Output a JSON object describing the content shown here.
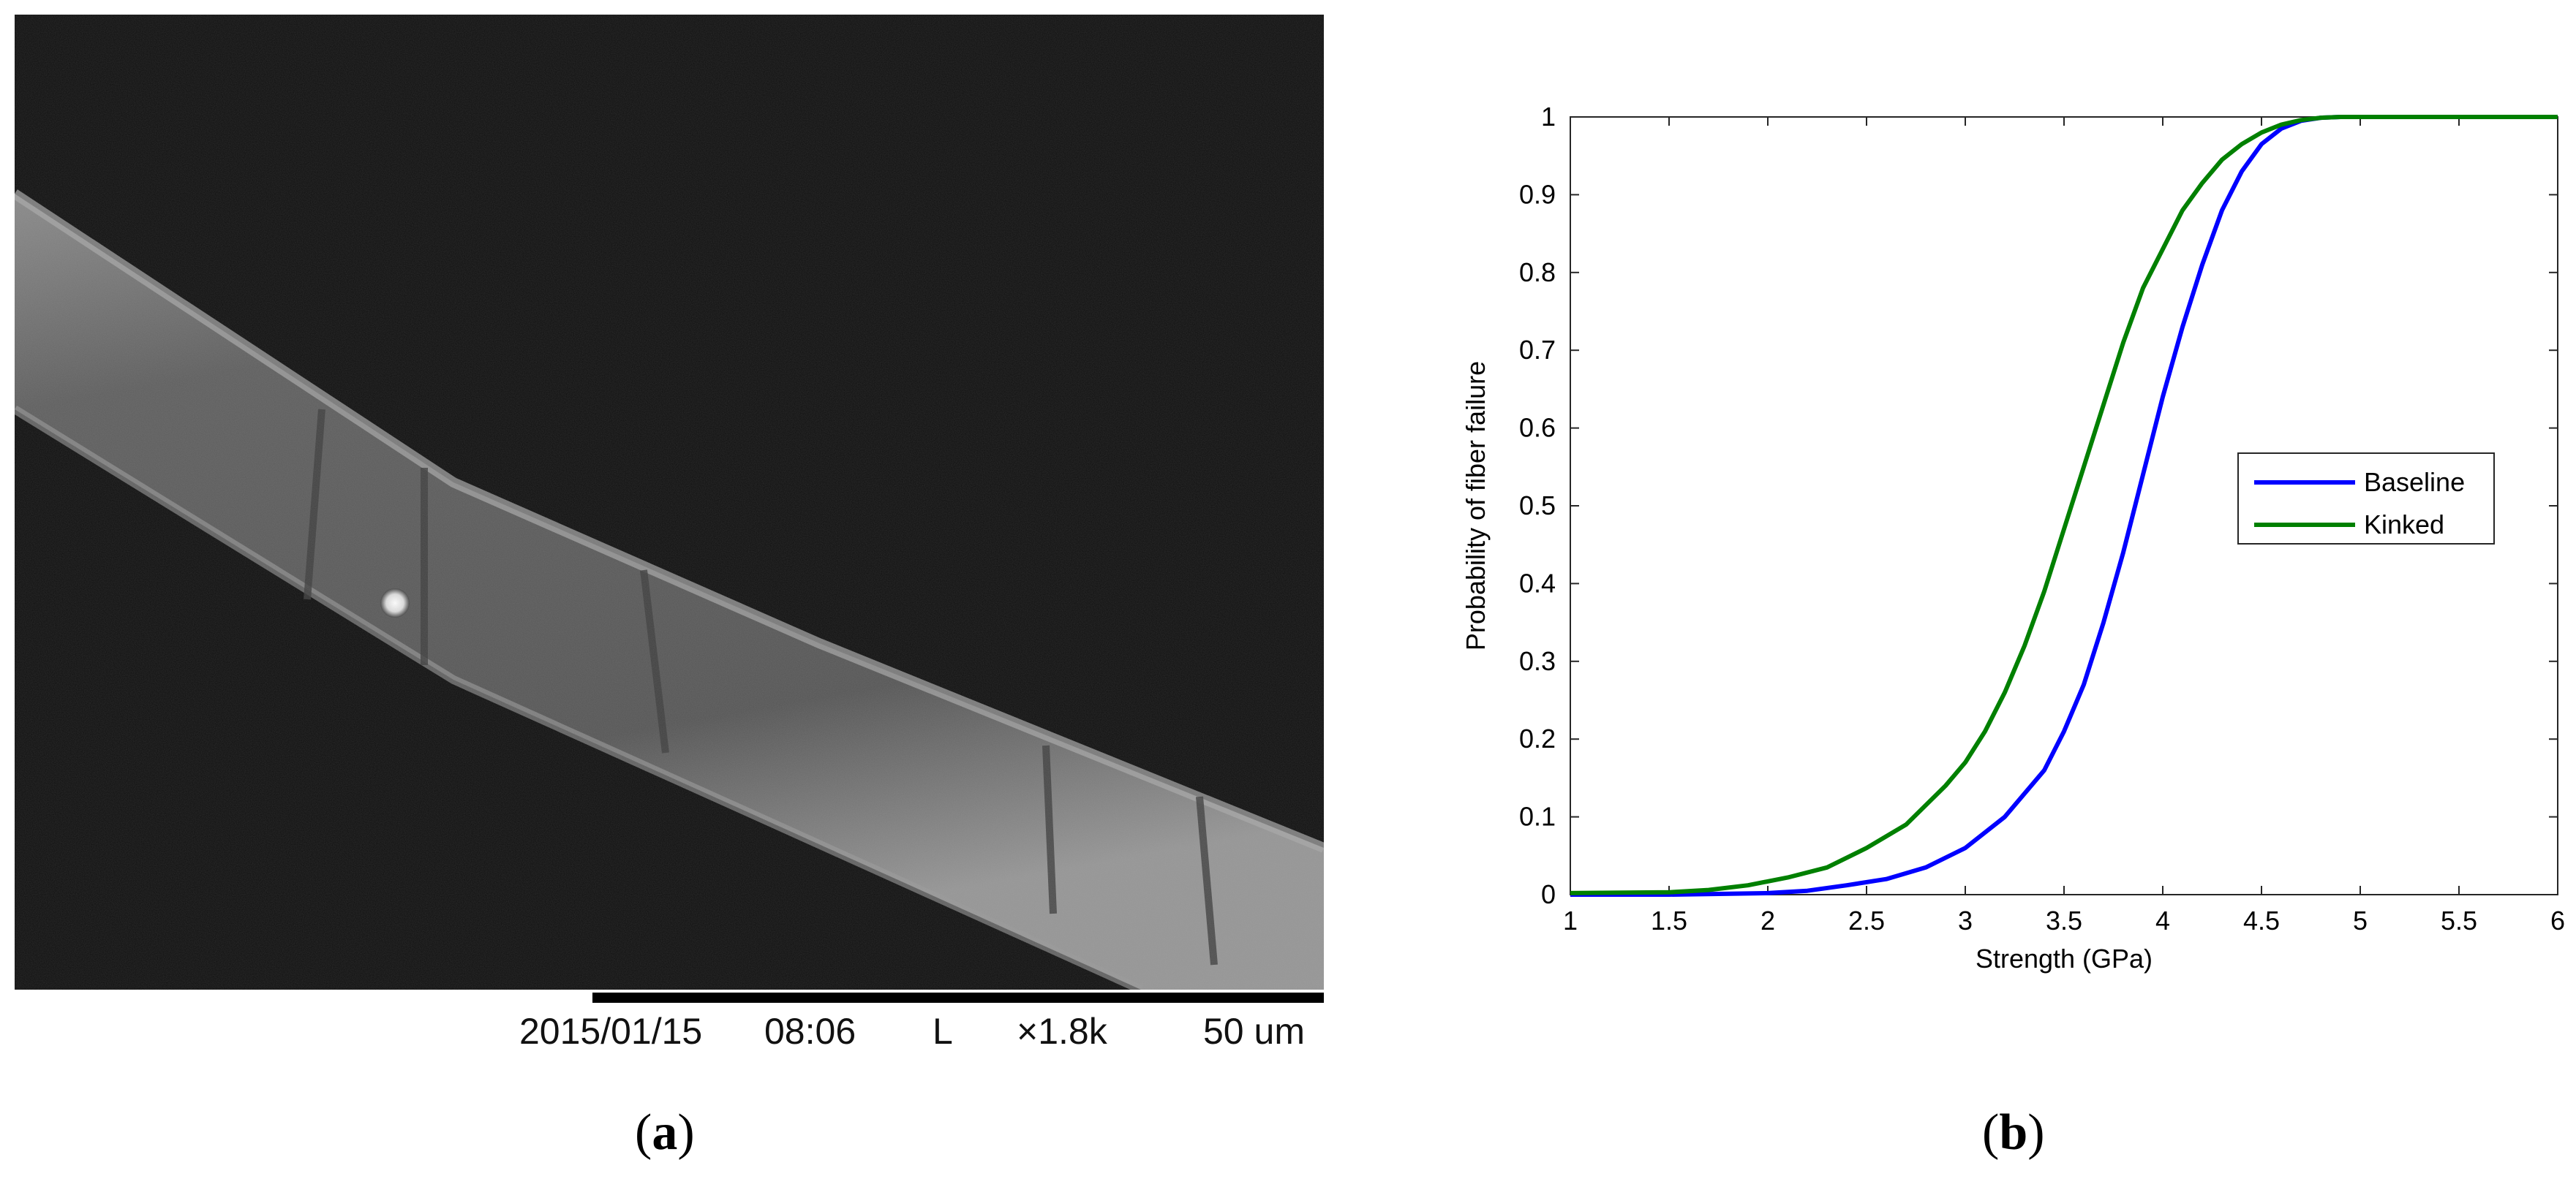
{
  "panel_a": {
    "label_letter": "a",
    "sem_info": {
      "date": "2015/01/15",
      "time": "08:06",
      "mode": "L",
      "magnification": "×1.8k",
      "scale": "50 um"
    }
  },
  "panel_b": {
    "label_letter": "b"
  },
  "colors": {
    "baseline": "#0000ff",
    "kinked": "#008000",
    "sem_background": "#0e0e0e",
    "fiber": "#6e6e6e"
  },
  "chart_data": {
    "type": "line",
    "title": "",
    "xlabel": "Strength (GPa)",
    "ylabel": "Probability of fiber failure",
    "xlim": [
      1,
      6
    ],
    "ylim": [
      0,
      1
    ],
    "xticks": [
      "1",
      "1.5",
      "2",
      "2.5",
      "3",
      "3.5",
      "4",
      "4.5",
      "5",
      "5.5",
      "6"
    ],
    "yticks": [
      "0",
      "0.1",
      "0.2",
      "0.3",
      "0.4",
      "0.5",
      "0.6",
      "0.7",
      "0.8",
      "0.9",
      "1"
    ],
    "grid": false,
    "legend_position": "right",
    "series": [
      {
        "name": "Baseline",
        "color": "#0000ff",
        "x": [
          1.0,
          1.5,
          2.0,
          2.2,
          2.4,
          2.6,
          2.8,
          3.0,
          3.2,
          3.4,
          3.5,
          3.6,
          3.7,
          3.8,
          3.9,
          4.0,
          4.1,
          4.2,
          4.3,
          4.4,
          4.5,
          4.6,
          4.7,
          4.8,
          4.9,
          5.0,
          5.5,
          6.0
        ],
        "y": [
          0.0,
          0.0,
          0.002,
          0.005,
          0.012,
          0.02,
          0.035,
          0.06,
          0.1,
          0.16,
          0.21,
          0.27,
          0.35,
          0.44,
          0.54,
          0.64,
          0.73,
          0.81,
          0.88,
          0.93,
          0.965,
          0.985,
          0.995,
          0.999,
          1.0,
          1.0,
          1.0,
          1.0
        ]
      },
      {
        "name": "Kinked",
        "color": "#008000",
        "x": [
          1.0,
          1.5,
          1.7,
          1.9,
          2.1,
          2.3,
          2.5,
          2.7,
          2.9,
          3.0,
          3.1,
          3.2,
          3.3,
          3.4,
          3.5,
          3.6,
          3.7,
          3.8,
          3.9,
          4.0,
          4.1,
          4.2,
          4.3,
          4.4,
          4.5,
          4.6,
          4.7,
          4.8,
          4.9,
          5.0,
          5.5,
          6.0
        ],
        "y": [
          0.002,
          0.003,
          0.006,
          0.012,
          0.022,
          0.035,
          0.06,
          0.09,
          0.14,
          0.17,
          0.21,
          0.26,
          0.32,
          0.39,
          0.47,
          0.55,
          0.63,
          0.71,
          0.78,
          0.83,
          0.88,
          0.915,
          0.945,
          0.965,
          0.98,
          0.99,
          0.996,
          0.999,
          1.0,
          1.0,
          1.0,
          1.0
        ]
      }
    ]
  }
}
